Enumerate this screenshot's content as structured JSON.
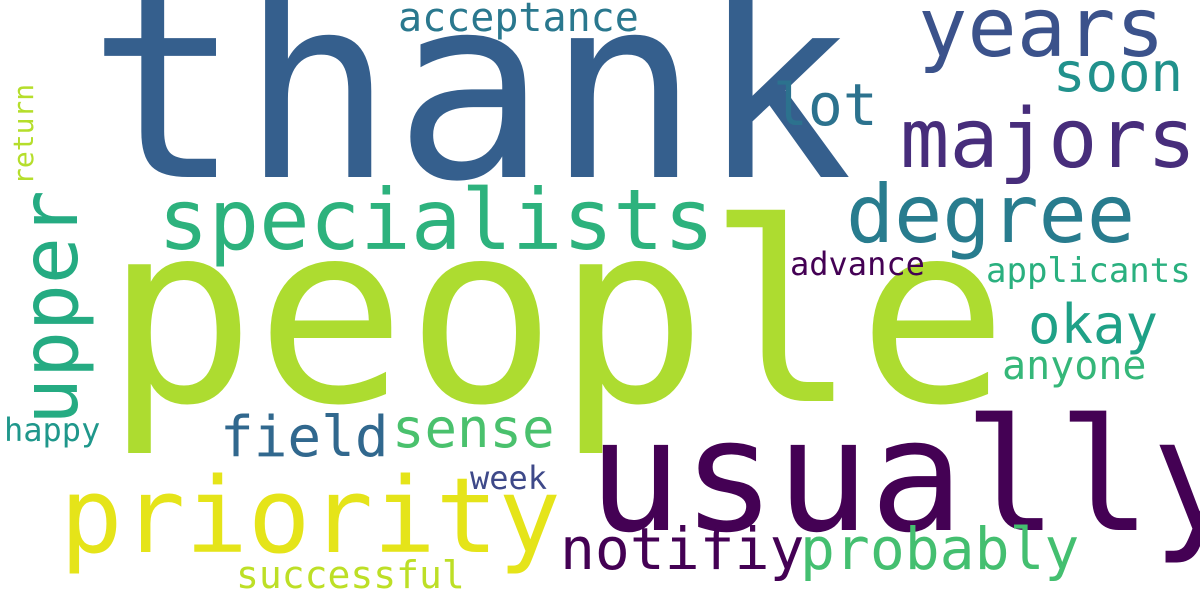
{
  "words": {
    "thank": "thank",
    "people": "people",
    "usually": "usually",
    "priority": "priority",
    "specialists": "specialists",
    "majors": "majors",
    "years": "years",
    "degree": "degree",
    "upper": "upper",
    "notifiy": "notifiy",
    "probably": "probably",
    "lot": "lot",
    "sense": "sense",
    "field": "field",
    "okay": "okay",
    "soon": "soon",
    "acceptance": "acceptance",
    "anyone": "anyone",
    "successful": "successful",
    "applicants": "applicants",
    "advance": "advance",
    "happy": "happy",
    "week": "week",
    "return": "return"
  },
  "colors": {
    "thank": "#355f8d",
    "people": "#addc30",
    "usually": "#440154",
    "priority": "#e5e419",
    "specialists": "#2db27d",
    "majors": "#472d7b",
    "years": "#3b528b",
    "degree": "#287c8e",
    "upper": "#25ab82",
    "notifiy": "#440154",
    "probably": "#44bf70",
    "lot": "#2c728e",
    "sense": "#4ac16d",
    "field": "#31688e",
    "okay": "#1fa187",
    "soon": "#21918c",
    "acceptance": "#2a788e",
    "anyone": "#35b779",
    "successful": "#bddf26",
    "applicants": "#2ab07f",
    "advance": "#440154",
    "happy": "#1f978b",
    "week": "#3e4989",
    "return": "#b5de2b"
  }
}
